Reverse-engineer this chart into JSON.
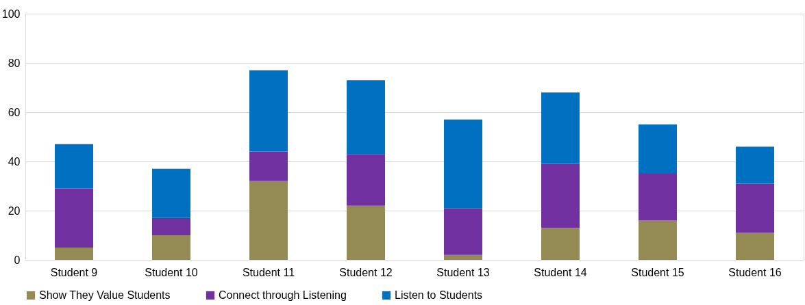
{
  "chart_data": {
    "type": "bar",
    "stacked": true,
    "categories": [
      "Student 9",
      "Student 10",
      "Student 11",
      "Student 12",
      "Student 13",
      "Student 14",
      "Student 15",
      "Student 16"
    ],
    "series": [
      {
        "name": "Show They Value Students",
        "color": "#948a54",
        "values": [
          5,
          10,
          32,
          22,
          2,
          13,
          16,
          11
        ]
      },
      {
        "name": "Connect through Listening",
        "color": "#7030a0",
        "values": [
          24,
          7,
          12,
          21,
          19,
          26,
          19,
          20
        ]
      },
      {
        "name": "Listen to Students",
        "color": "#0070c0",
        "values": [
          18,
          20,
          33,
          30,
          36,
          29,
          20,
          15
        ]
      }
    ],
    "ylim": [
      0,
      100
    ],
    "yticks": [
      0,
      20,
      40,
      60,
      80,
      100
    ],
    "grid": "y",
    "legend": "bottom"
  }
}
